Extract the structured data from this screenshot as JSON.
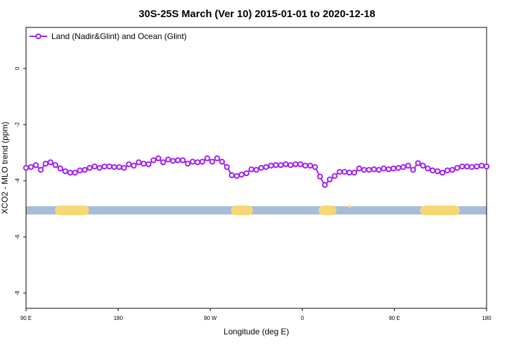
{
  "chart_data": {
    "type": "line",
    "title": "30S-25S March (Ver 10)   2015-01-01 to 2020-12-18",
    "x_label": "Longitude (deg E)",
    "y_label": "XCO2 - MLO trend (ppm)",
    "xlim": [
      90,
      540
    ],
    "ylim": [
      -8.54,
      1.46
    ],
    "xticks": [
      {
        "value": 90,
        "label": "90 E"
      },
      {
        "value": 180,
        "label": "180"
      },
      {
        "value": 270,
        "label": "90 W"
      },
      {
        "value": 360,
        "label": "0"
      },
      {
        "value": 450,
        "label": "90 E"
      },
      {
        "value": 540,
        "label": "180"
      }
    ],
    "yticks": [
      0,
      -2,
      -4,
      -6,
      -8
    ],
    "legend": "top-left",
    "x": [
      90,
      94.8,
      99.6,
      104.4,
      109.1,
      113.9,
      118.7,
      123.5,
      128.3,
      133.1,
      137.9,
      142.7,
      147.4,
      152.2,
      157.0,
      161.8,
      166.6,
      171.4,
      176.2,
      181.0,
      185.7,
      190.5,
      195.3,
      200.1,
      204.9,
      209.7,
      214.5,
      219.3,
      224.0,
      228.8,
      233.6,
      238.4,
      243.2,
      248.0,
      252.8,
      257.6,
      262.3,
      267.1,
      271.9,
      276.7,
      281.5,
      286.3,
      291.1,
      295.9,
      300.6,
      305.4,
      310.2,
      315.0,
      319.8,
      324.6,
      329.4,
      334.1,
      338.9,
      343.7,
      348.5,
      353.3,
      358.1,
      362.9,
      367.7,
      372.4,
      377.2,
      382.0,
      386.8,
      391.6,
      396.4,
      401.2,
      406.0,
      410.7,
      415.5,
      420.3,
      425.1,
      429.9,
      434.7,
      439.5,
      444.3,
      449.0,
      453.8,
      458.6,
      463.4,
      468.2,
      473.0,
      477.8,
      482.6,
      487.3,
      492.1,
      496.9,
      501.7,
      506.5,
      511.3,
      516.1,
      520.9,
      525.6,
      530.4,
      535.2,
      540.0
    ],
    "series": [
      {
        "name": "Land (Nadir&Glint) and Ocean (Glint)",
        "color": "#a020f0",
        "values": [
          -3.54,
          -3.51,
          -3.44,
          -3.61,
          -3.39,
          -3.34,
          -3.44,
          -3.56,
          -3.66,
          -3.71,
          -3.71,
          -3.63,
          -3.61,
          -3.54,
          -3.49,
          -3.54,
          -3.49,
          -3.49,
          -3.51,
          -3.51,
          -3.54,
          -3.41,
          -3.46,
          -3.34,
          -3.39,
          -3.41,
          -3.27,
          -3.2,
          -3.34,
          -3.24,
          -3.29,
          -3.27,
          -3.27,
          -3.39,
          -3.32,
          -3.34,
          -3.32,
          -3.2,
          -3.32,
          -3.2,
          -3.32,
          -3.51,
          -3.8,
          -3.83,
          -3.78,
          -3.73,
          -3.59,
          -3.61,
          -3.54,
          -3.51,
          -3.46,
          -3.44,
          -3.44,
          -3.41,
          -3.44,
          -3.41,
          -3.41,
          -3.46,
          -3.46,
          -3.51,
          -3.85,
          -4.15,
          -3.95,
          -3.83,
          -3.68,
          -3.68,
          -3.71,
          -3.71,
          -3.56,
          -3.61,
          -3.61,
          -3.59,
          -3.61,
          -3.56,
          -3.59,
          -3.56,
          -3.54,
          -3.51,
          -3.46,
          -3.61,
          -3.37,
          -3.46,
          -3.56,
          -3.63,
          -3.66,
          -3.71,
          -3.63,
          -3.61,
          -3.54,
          -3.49,
          -3.49,
          -3.51,
          -3.49,
          -3.46,
          -3.49
        ]
      }
    ]
  }
}
